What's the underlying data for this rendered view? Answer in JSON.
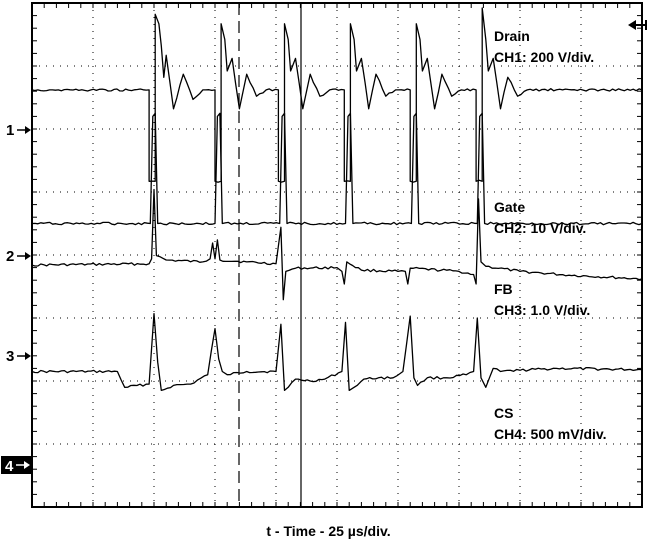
{
  "chart_data": {
    "type": "line",
    "title": "",
    "xlabel": "t - Time - 25 µs/div.",
    "ylabel": "",
    "x_unit": "µs",
    "time_per_div_us": 25,
    "divisions": 10,
    "xlim": [
      0,
      250
    ],
    "grid": true,
    "channel_markers": [
      "1",
      "2",
      "3",
      "4"
    ],
    "series": [
      {
        "name": "Drain",
        "scale_label": "CH1: 200 V/div.",
        "baseline_div": 1.38,
        "points": [
          [
            0,
            0
          ],
          [
            48,
            0
          ],
          [
            48,
            -1.45
          ],
          [
            50.5,
            -1.45
          ],
          [
            50.5,
            1.2
          ],
          [
            52,
            1.05
          ],
          [
            53,
            0.7
          ],
          [
            54,
            0.2
          ],
          [
            55,
            0.55
          ],
          [
            58,
            -0.3
          ],
          [
            62,
            0.25
          ],
          [
            66,
            -0.15
          ],
          [
            70,
            0
          ],
          [
            75,
            0
          ],
          [
            75,
            -1.45
          ],
          [
            77.5,
            -1.45
          ],
          [
            77.5,
            1.05
          ],
          [
            79,
            0.8
          ],
          [
            80,
            0.3
          ],
          [
            82,
            0.5
          ],
          [
            85,
            -0.3
          ],
          [
            88,
            0.25
          ],
          [
            92,
            -0.1
          ],
          [
            96,
            0
          ],
          [
            101,
            0
          ],
          [
            101,
            -1.45
          ],
          [
            103.5,
            -1.45
          ],
          [
            103.5,
            1.05
          ],
          [
            105,
            0.8
          ],
          [
            106,
            0.3
          ],
          [
            108,
            0.5
          ],
          [
            111,
            -0.3
          ],
          [
            114,
            0.25
          ],
          [
            118,
            -0.1
          ],
          [
            122,
            0
          ],
          [
            128,
            0
          ],
          [
            128,
            -1.45
          ],
          [
            130.5,
            -1.45
          ],
          [
            130.5,
            1.05
          ],
          [
            132,
            0.8
          ],
          [
            133,
            0.3
          ],
          [
            135,
            0.5
          ],
          [
            138,
            -0.3
          ],
          [
            141,
            0.25
          ],
          [
            145,
            -0.1
          ],
          [
            149,
            0
          ],
          [
            155,
            0
          ],
          [
            155,
            -1.45
          ],
          [
            157.5,
            -1.45
          ],
          [
            157.5,
            1.05
          ],
          [
            159,
            0.8
          ],
          [
            160,
            0.3
          ],
          [
            162,
            0.5
          ],
          [
            165,
            -0.3
          ],
          [
            168,
            0.25
          ],
          [
            172,
            -0.1
          ],
          [
            176,
            0
          ],
          [
            182,
            0
          ],
          [
            182,
            -1.45
          ],
          [
            184.5,
            -1.45
          ],
          [
            184.5,
            1.3
          ],
          [
            186,
            0.8
          ],
          [
            187,
            0.3
          ],
          [
            189,
            0.5
          ],
          [
            192,
            -0.3
          ],
          [
            195,
            0.2
          ],
          [
            199,
            -0.1
          ],
          [
            203,
            0
          ],
          [
            250,
            0
          ]
        ]
      },
      {
        "name": "Gate",
        "scale_label": "CH2: 10 V/div.",
        "baseline_div": 3.5,
        "points": [
          [
            0,
            0
          ],
          [
            48.5,
            0
          ],
          [
            49.5,
            1.7
          ],
          [
            50.5,
            1.75
          ],
          [
            51.5,
            0
          ],
          [
            75,
            0
          ],
          [
            76,
            1.7
          ],
          [
            77,
            1.75
          ],
          [
            78,
            0
          ],
          [
            101.5,
            0
          ],
          [
            102.5,
            1.7
          ],
          [
            103.5,
            1.75
          ],
          [
            104.5,
            0
          ],
          [
            128.5,
            0
          ],
          [
            129.5,
            1.7
          ],
          [
            130.5,
            1.75
          ],
          [
            131.5,
            0
          ],
          [
            155.5,
            0
          ],
          [
            156.5,
            1.7
          ],
          [
            157.5,
            1.75
          ],
          [
            158.5,
            0
          ],
          [
            182.5,
            0
          ],
          [
            183.5,
            1.7
          ],
          [
            184.5,
            1.75
          ],
          [
            185.5,
            0
          ],
          [
            250,
            0
          ]
        ]
      },
      {
        "name": "FB",
        "scale_label": "CH3: 1.0 V/div.",
        "baseline_div": 4.16,
        "points": [
          [
            0,
            0
          ],
          [
            48,
            0.02
          ],
          [
            49,
            0.1
          ],
          [
            50,
            1.2
          ],
          [
            51,
            0.15
          ],
          [
            55,
            0.08
          ],
          [
            70,
            0.05
          ],
          [
            73,
            0.1
          ],
          [
            74,
            0.35
          ],
          [
            75,
            0.1
          ],
          [
            76,
            0.4
          ],
          [
            77,
            0.08
          ],
          [
            88,
            0.05
          ],
          [
            100,
            0.02
          ],
          [
            102,
            0.6
          ],
          [
            103,
            -0.55
          ],
          [
            104,
            -0.1
          ],
          [
            108,
            -0.05
          ],
          [
            125,
            -0.04
          ],
          [
            127,
            -0.1
          ],
          [
            128,
            -0.3
          ],
          [
            129,
            0.05
          ],
          [
            135,
            -0.08
          ],
          [
            150,
            -0.1
          ],
          [
            153,
            -0.1
          ],
          [
            154,
            -0.3
          ],
          [
            155,
            -0.05
          ],
          [
            175,
            -0.1
          ],
          [
            181,
            -0.15
          ],
          [
            182,
            -0.3
          ],
          [
            183,
            1.05
          ],
          [
            184,
            0.05
          ],
          [
            186,
            -0.02
          ],
          [
            200,
            -0.1
          ],
          [
            220,
            -0.16
          ],
          [
            250,
            -0.22
          ]
        ]
      },
      {
        "name": "CS",
        "scale_label": "CH4: 500 mV/div.",
        "baseline_div": 5.85,
        "points": [
          [
            0,
            0
          ],
          [
            35,
            0
          ],
          [
            38,
            -0.25
          ],
          [
            48,
            -0.2
          ],
          [
            50,
            0.92
          ],
          [
            51.5,
            0.15
          ],
          [
            53,
            -0.3
          ],
          [
            58,
            -0.22
          ],
          [
            65,
            -0.2
          ],
          [
            72,
            -0.05
          ],
          [
            75,
            0.68
          ],
          [
            76.5,
            0.2
          ],
          [
            78,
            0
          ],
          [
            80,
            -0.05
          ],
          [
            88,
            0
          ],
          [
            100,
            0
          ],
          [
            102,
            0.75
          ],
          [
            103.5,
            -0.3
          ],
          [
            105,
            -0.25
          ],
          [
            108,
            -0.12
          ],
          [
            114,
            -0.15
          ],
          [
            120,
            -0.12
          ],
          [
            127,
            0
          ],
          [
            128.5,
            0.78
          ],
          [
            130,
            -0.3
          ],
          [
            132,
            -0.25
          ],
          [
            136,
            -0.12
          ],
          [
            142,
            -0.1
          ],
          [
            148,
            -0.1
          ],
          [
            152,
            0
          ],
          [
            155,
            0.88
          ],
          [
            156.5,
            -0.1
          ],
          [
            158,
            -0.22
          ],
          [
            162,
            -0.1
          ],
          [
            170,
            -0.1
          ],
          [
            178,
            -0.05
          ],
          [
            181,
            0
          ],
          [
            182.5,
            0.85
          ],
          [
            184,
            -0.1
          ],
          [
            186,
            -0.25
          ],
          [
            189,
            0.05
          ],
          [
            192,
            0
          ],
          [
            200,
            0.02
          ],
          [
            215,
            0.05
          ],
          [
            250,
            0.03
          ]
        ]
      }
    ]
  },
  "labels": {
    "drain_name": "Drain",
    "drain_scale": "CH1: 200 V/div.",
    "gate_name": "Gate",
    "gate_scale": "CH2: 10 V/div.",
    "fb_name": "FB",
    "fb_scale": "CH3: 1.0 V/div.",
    "cs_name": "CS",
    "cs_scale": "CH4: 500 mV/div."
  },
  "markers": {
    "ch1": "1",
    "ch2": "2",
    "ch3": "3",
    "ch4": "4"
  },
  "colors": {
    "trace": "#000000",
    "grid": "#000000",
    "background": "#ffffff",
    "ch4_marker_bg": "#000000",
    "ch4_marker_fg": "#ffffff"
  }
}
